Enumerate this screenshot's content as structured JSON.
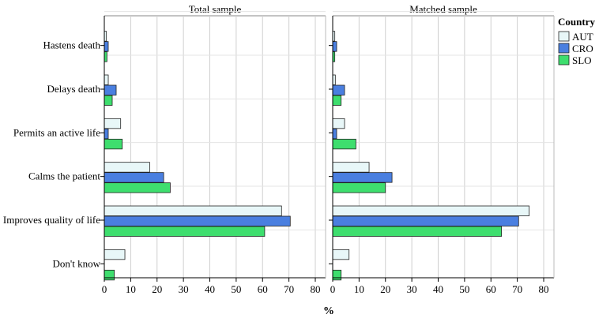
{
  "chart_data": {
    "type": "bar",
    "orientation": "horizontal",
    "xlabel": "%",
    "xlim": [
      0,
      80
    ],
    "xticks": [
      0,
      10,
      20,
      30,
      40,
      50,
      60,
      70,
      80
    ],
    "categories": [
      "Hastens death",
      "Delays death",
      "Permits an active life",
      "Calms the patient",
      "Improves quality of life",
      "Don't know"
    ],
    "legend": {
      "title": "Country",
      "placement": "top-right",
      "entries": [
        "AUT",
        "CRO",
        "SLO"
      ]
    },
    "colors": {
      "AUT": "#e8f7f8",
      "CRO": "#4a7fe0",
      "SLO": "#3ede6e"
    },
    "panels": [
      {
        "title": "Total sample",
        "series": [
          {
            "name": "AUT",
            "values": [
              0.8,
              1.5,
              6.2,
              17.2,
              67.2,
              7.8
            ]
          },
          {
            "name": "CRO",
            "values": [
              1.5,
              4.5,
              1.5,
              22.5,
              70.5,
              0.0
            ]
          },
          {
            "name": "SLO",
            "values": [
              1.0,
              3.0,
              6.8,
              25.0,
              60.8,
              3.8
            ]
          }
        ]
      },
      {
        "title": "Matched sample",
        "series": [
          {
            "name": "AUT",
            "values": [
              0.8,
              1.0,
              4.5,
              13.8,
              74.5,
              6.2
            ]
          },
          {
            "name": "CRO",
            "values": [
              1.5,
              4.5,
              1.5,
              22.5,
              70.5,
              0.0
            ]
          },
          {
            "name": "SLO",
            "values": [
              0.8,
              3.2,
              8.8,
              20.0,
              64.0,
              3.2
            ]
          }
        ]
      }
    ]
  }
}
